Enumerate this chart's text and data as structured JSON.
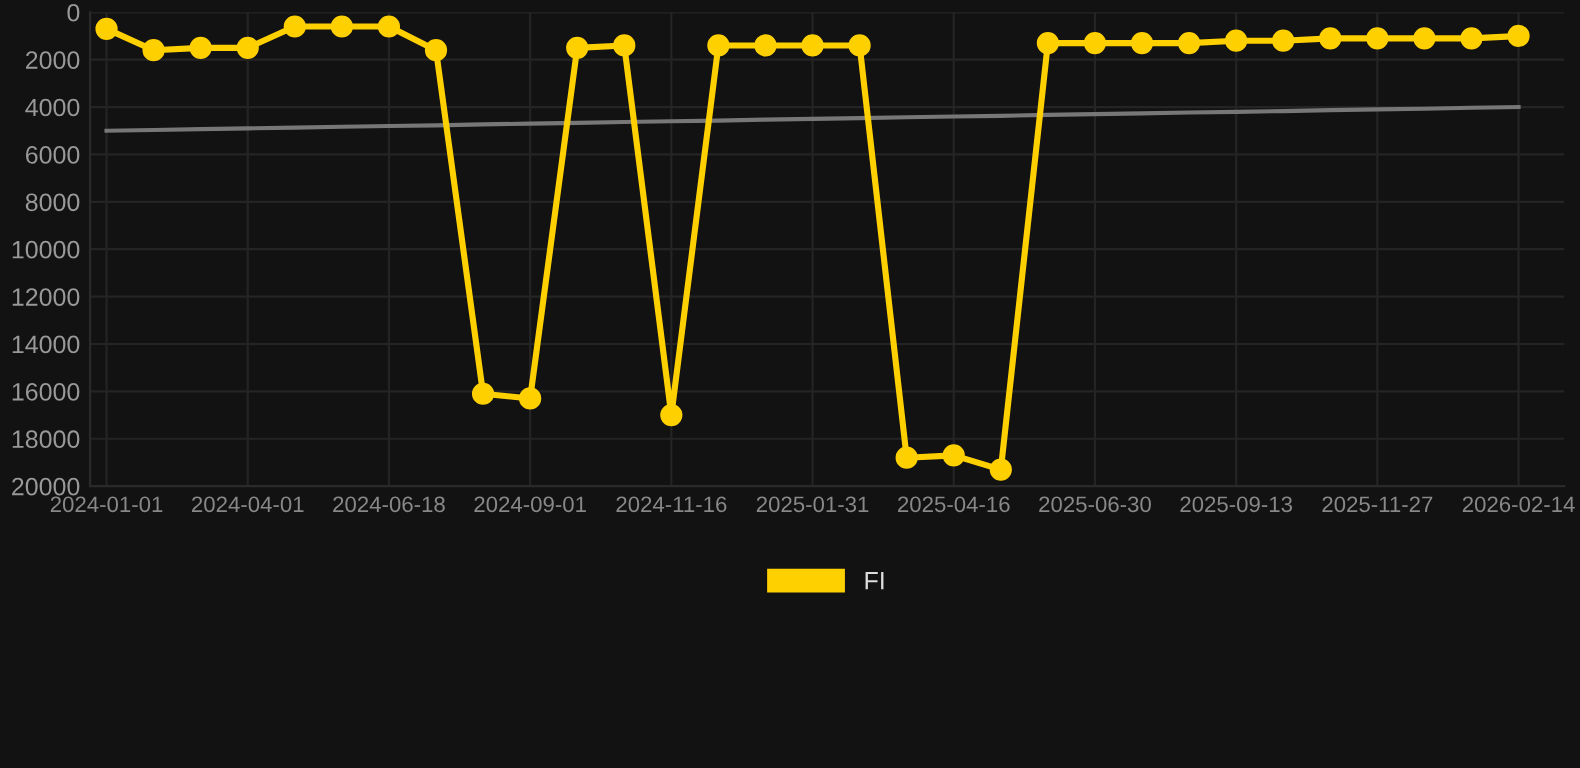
{
  "chart_data": {
    "type": "line",
    "categories": [
      "2024-01-01",
      null,
      null,
      "2024-04-01",
      null,
      null,
      "2024-06-18",
      null,
      null,
      "2024-09-01",
      null,
      null,
      "2024-11-16",
      null,
      null,
      "2025-01-31",
      null,
      null,
      "2025-04-16",
      null,
      null,
      "2025-06-30",
      null,
      null,
      "2025-09-13",
      null,
      null,
      "2025-11-27",
      null,
      null,
      "2026-02-14"
    ],
    "series": [
      {
        "name": "FI",
        "color": "#ffd000",
        "values": [
          700,
          1600,
          1500,
          1500,
          600,
          600,
          600,
          1600,
          16100,
          16300,
          1500,
          1400,
          17000,
          1400,
          1400,
          1400,
          1400,
          18800,
          18700,
          19300,
          1300,
          1300,
          1300,
          1300,
          1200,
          1200,
          1100,
          1100,
          1100,
          1100,
          1000
        ],
        "marker": "circle"
      },
      {
        "type": "line",
        "color": "#777777",
        "values": [
          5000,
          4970,
          4930,
          4900,
          4870,
          4830,
          4800,
          4770,
          4730,
          4700,
          4670,
          4630,
          4600,
          4570,
          4530,
          4500,
          4470,
          4430,
          4400,
          4370,
          4330,
          4300,
          4270,
          4230,
          4200,
          4170,
          4130,
          4100,
          4070,
          4030,
          4000
        ],
        "marker": "none"
      }
    ],
    "ylim": [
      20000,
      0
    ],
    "yticks": [
      0,
      2000,
      4000,
      6000,
      8000,
      10000,
      12000,
      14000,
      16000,
      18000,
      20000
    ],
    "grid": true,
    "legend": "bottom"
  }
}
